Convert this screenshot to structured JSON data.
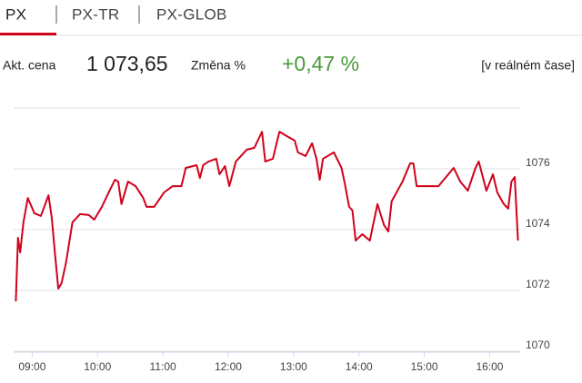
{
  "tabs": [
    "PX",
    "PX-TR",
    "PX-GLOB"
  ],
  "info": {
    "price_label": "Akt. cena",
    "price": "1 073,65",
    "change_label": "Změna %",
    "change": "+0,47 %",
    "realtime": "[v reálném čase]"
  },
  "chart_data": {
    "type": "line",
    "color": "#d0021b",
    "x": [
      525,
      527,
      529,
      532,
      536,
      542,
      548,
      555,
      558,
      561,
      564,
      567,
      571,
      577,
      584,
      592,
      597,
      604,
      609,
      616,
      619,
      622,
      628,
      635,
      642,
      645,
      652,
      661,
      669,
      677,
      681,
      691,
      694,
      697,
      702,
      709,
      712,
      717,
      721,
      727,
      737,
      744,
      751,
      754,
      761,
      767,
      774,
      781,
      784,
      791,
      797,
      801,
      804,
      807,
      817,
      824,
      827,
      831,
      834,
      837,
      843,
      850,
      857,
      863,
      867,
      870,
      880,
      887,
      890,
      893,
      900,
      907,
      913,
      920,
      927,
      933,
      940,
      947,
      950,
      957,
      963,
      967,
      973,
      977,
      980,
      983,
      986
    ],
    "values": [
      1071.64,
      1073.73,
      1073.25,
      1074.24,
      1075.04,
      1074.54,
      1074.45,
      1075.13,
      1074.39,
      1073.19,
      1072.06,
      1072.24,
      1072.9,
      1074.24,
      1074.51,
      1074.48,
      1074.33,
      1074.75,
      1075.13,
      1075.64,
      1075.58,
      1074.84,
      1075.58,
      1075.43,
      1075.04,
      1074.75,
      1074.75,
      1075.22,
      1075.43,
      1075.43,
      1076.03,
      1076.12,
      1075.7,
      1076.12,
      1076.24,
      1076.33,
      1075.82,
      1076.09,
      1075.43,
      1076.24,
      1076.63,
      1076.69,
      1077.22,
      1076.24,
      1076.33,
      1077.22,
      1077.07,
      1076.93,
      1076.54,
      1076.42,
      1076.84,
      1076.33,
      1075.64,
      1076.33,
      1076.54,
      1076.03,
      1075.52,
      1074.75,
      1074.63,
      1073.64,
      1073.85,
      1073.64,
      1074.84,
      1074.15,
      1073.94,
      1074.93,
      1075.58,
      1076.18,
      1076.18,
      1075.43,
      1075.43,
      1075.43,
      1075.43,
      1075.73,
      1076.03,
      1075.58,
      1075.28,
      1076.03,
      1076.24,
      1075.28,
      1075.82,
      1075.22,
      1074.84,
      1074.69,
      1075.58,
      1075.73,
      1073.64
    ],
    "xlim": [
      523,
      988
    ],
    "xticks": [
      {
        "value": 540,
        "label": "09:00"
      },
      {
        "value": 600,
        "label": "10:00"
      },
      {
        "value": 660,
        "label": "11:00"
      },
      {
        "value": 720,
        "label": "12:00"
      },
      {
        "value": 780,
        "label": "13:00"
      },
      {
        "value": 840,
        "label": "14:00"
      },
      {
        "value": 900,
        "label": "15:00"
      },
      {
        "value": 960,
        "label": "16:00"
      }
    ],
    "ylim": [
      1070,
      1078
    ],
    "yticks": [
      1070,
      1072,
      1074,
      1076
    ],
    "grid": true
  }
}
